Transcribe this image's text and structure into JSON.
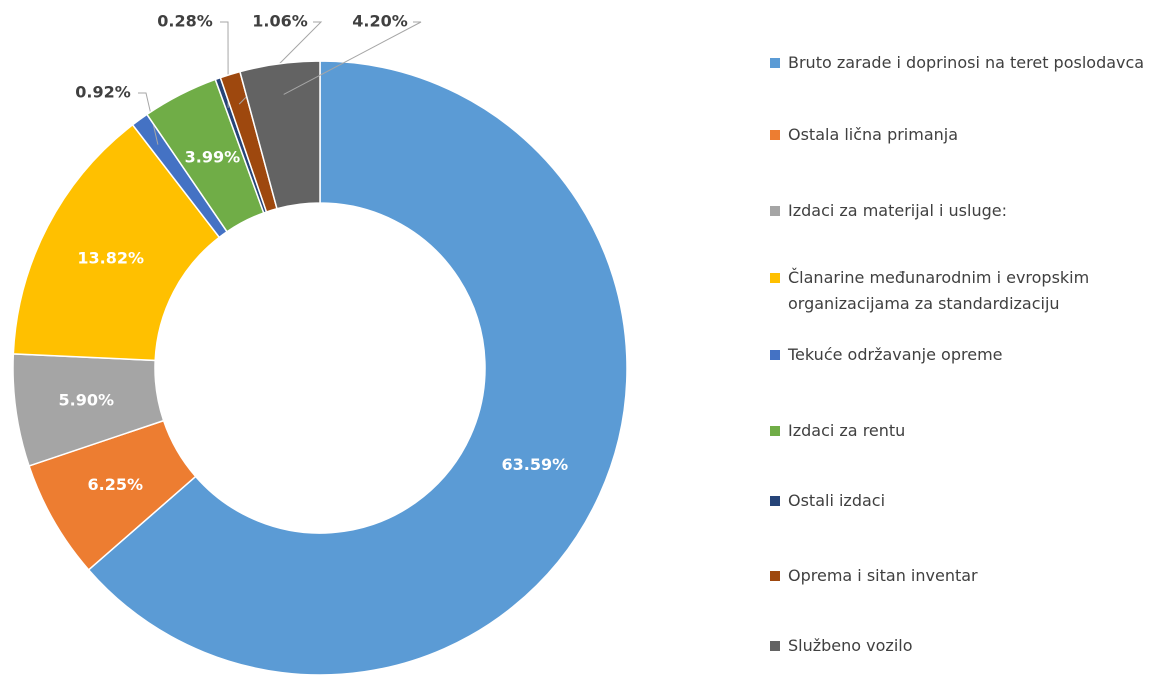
{
  "chart_data": {
    "type": "donut",
    "categories": [
      "Bruto zarade i doprinosi na teret poslodavca",
      "Ostala lična primanja",
      "Izdaci za materijal i usluge:",
      "Članarine međunarodnim i evropskim organizacijama za standardizaciju",
      "Tekuće održavanje opreme",
      "Izdaci za rentu",
      "Ostali izdaci",
      "Oprema i sitan inventar",
      "Službeno vozilo"
    ],
    "values": [
      63.59,
      6.25,
      5.9,
      13.82,
      0.92,
      3.99,
      0.28,
      1.06,
      4.2
    ],
    "value_labels": [
      "63.59%",
      "6.25%",
      "5.90%",
      "13.82%",
      "0.92%",
      "3.99%",
      "0.28%",
      "1.06%",
      "4.20%"
    ],
    "colors": [
      "#5b9bd5",
      "#ed7d31",
      "#a5a5a5",
      "#ffc000",
      "#4472c4",
      "#70ad47",
      "#264478",
      "#9e480e",
      "#636363"
    ],
    "legend": "right"
  }
}
